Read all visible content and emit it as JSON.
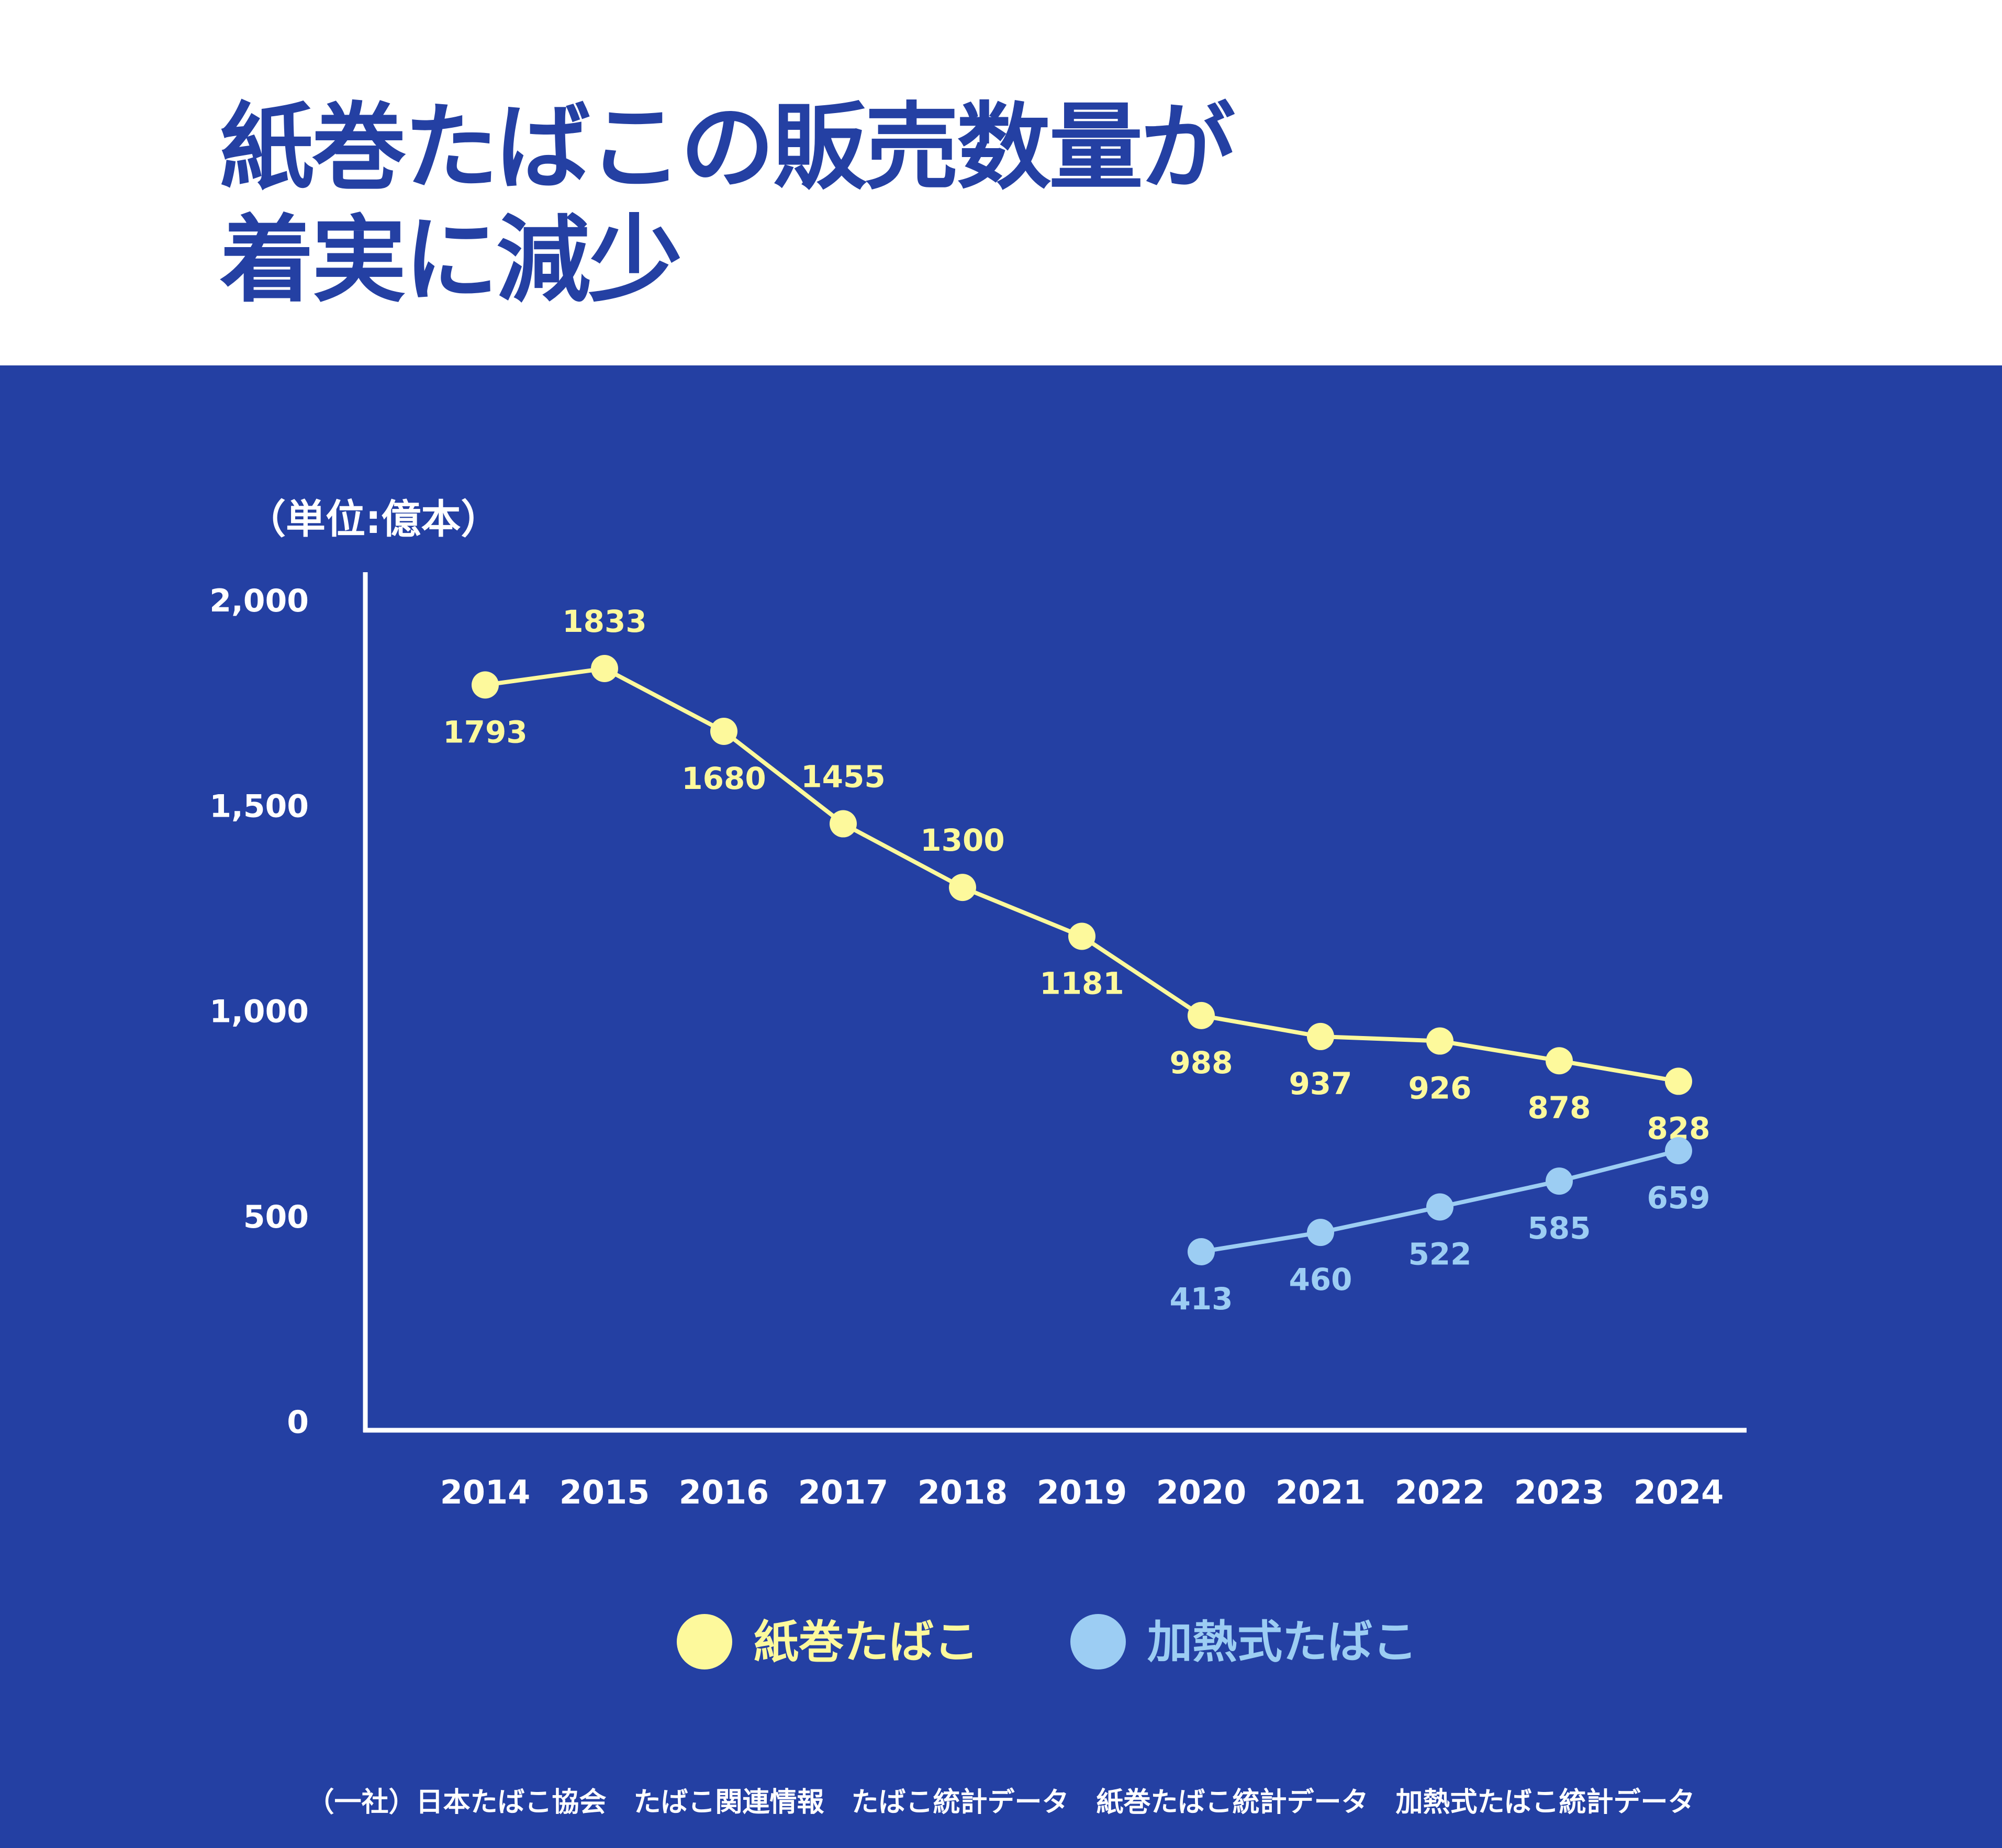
{
  "title": {
    "line1": "紙巻たばこの販売数量が",
    "line2": "着実に減少"
  },
  "colors": {
    "background_band": "#2440a3",
    "title": "#2440a3",
    "cigarette": "#fdf99c",
    "heated": "#9ccdf3",
    "axis": "#ffffff"
  },
  "chart_data": {
    "type": "line",
    "unit_label": "（単位:億本）",
    "ylim": [
      0,
      2000
    ],
    "y_ticks": [
      "0",
      "500",
      "1,000",
      "1,500",
      "2,000"
    ],
    "y_tick_values": [
      0,
      500,
      1000,
      1500,
      2000
    ],
    "categories": [
      "2014",
      "2015",
      "2016",
      "2017",
      "2018",
      "2019",
      "2020",
      "2021",
      "2022",
      "2023",
      "2024"
    ],
    "grid": false,
    "legend_placement": "bottom",
    "series": [
      {
        "name": "紙巻たばこ",
        "color": "#fdf99c",
        "values": [
          1793,
          1833,
          1680,
          1455,
          1300,
          1181,
          988,
          937,
          926,
          878,
          828
        ],
        "labels": [
          "1793",
          "1833",
          "1680",
          "1455",
          "1300",
          "1181",
          "988",
          "937",
          "926",
          "878",
          "828"
        ],
        "label_pos": [
          "below",
          "above",
          "below",
          "above",
          "above",
          "below",
          "below",
          "below",
          "below",
          "below",
          "below"
        ]
      },
      {
        "name": "加熱式たばこ",
        "color": "#9ccdf3",
        "values": [
          null,
          null,
          null,
          null,
          null,
          null,
          413,
          460,
          522,
          585,
          659
        ],
        "labels": [
          null,
          null,
          null,
          null,
          null,
          null,
          "413",
          "460",
          "522",
          "585",
          "659"
        ],
        "label_pos": [
          "below",
          "below",
          "below",
          "below",
          "below",
          "below",
          "below",
          "below",
          "below",
          "below",
          "below"
        ]
      }
    ]
  },
  "footer": "（一社）日本たばこ協会　たばこ関連情報　たばこ統計データ　紙巻たばこ統計データ　加熱式たばこ統計データ"
}
